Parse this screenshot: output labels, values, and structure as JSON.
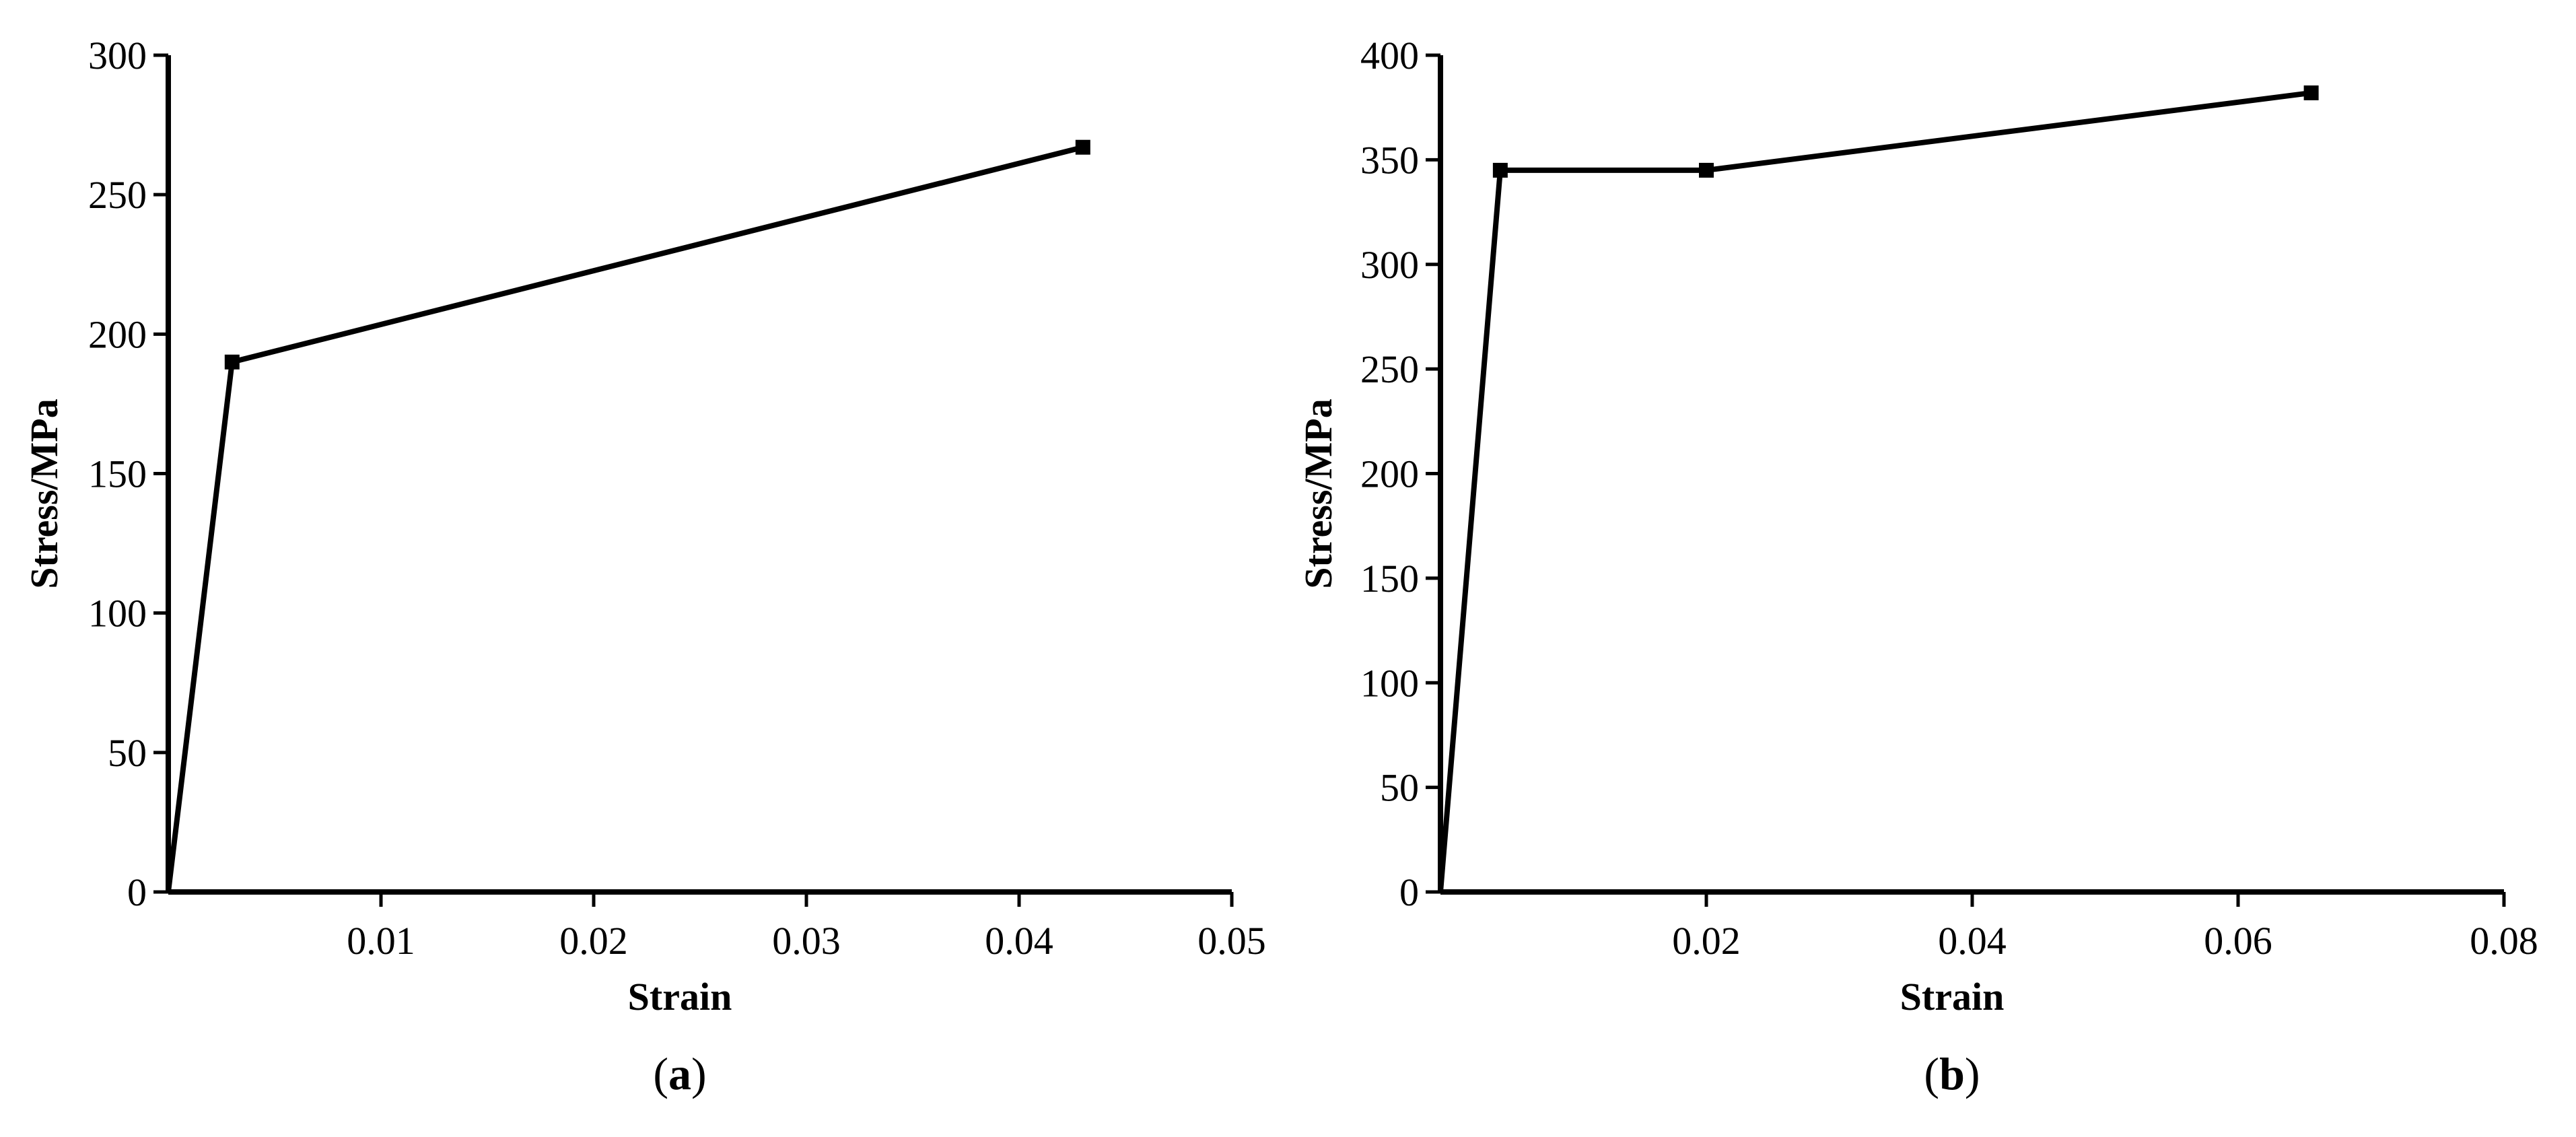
{
  "chart_data": [
    {
      "type": "line",
      "panel_label": "a",
      "xlabel": "Strain",
      "ylabel": "Stress/MPa",
      "xlim": [
        0,
        0.05
      ],
      "ylim": [
        0,
        300
      ],
      "x_ticks": [
        "0.01",
        "0.02",
        "0.03",
        "0.04",
        "0.05"
      ],
      "y_ticks": [
        "0",
        "50",
        "100",
        "150",
        "200",
        "250",
        "300"
      ],
      "series": [
        {
          "x": [
            0,
            0.003,
            0.043
          ],
          "y": [
            0,
            190,
            267
          ]
        }
      ],
      "marker": "square",
      "grid": false,
      "line_color": "#000000"
    },
    {
      "type": "line",
      "panel_label": "b",
      "xlabel": "Strain",
      "ylabel": "Stress/MPa",
      "xlim": [
        0,
        0.08
      ],
      "ylim": [
        0,
        400
      ],
      "x_ticks": [
        "0.02",
        "0.04",
        "0.06",
        "0.08"
      ],
      "y_ticks": [
        "0",
        "50",
        "100",
        "150",
        "200",
        "250",
        "300",
        "350",
        "400"
      ],
      "series": [
        {
          "x": [
            0,
            0.0045,
            0.02,
            0.0655
          ],
          "y": [
            0,
            345,
            345,
            382
          ]
        }
      ],
      "marker": "square",
      "grid": false,
      "line_color": "#000000"
    }
  ]
}
